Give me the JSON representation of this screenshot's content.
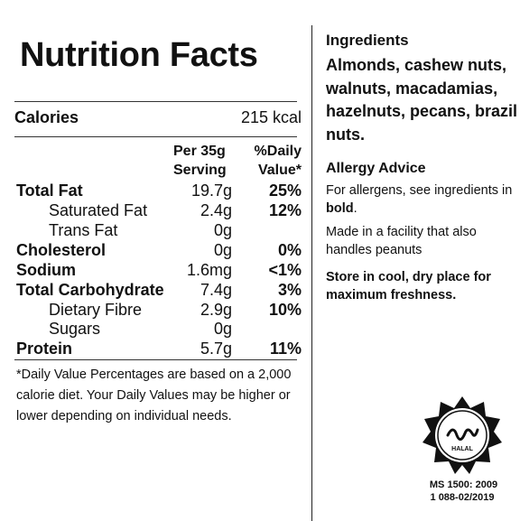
{
  "nutrition": {
    "title": "Nutrition Facts",
    "calories_label": "Calories",
    "calories_value": "215 kcal",
    "col_serving_line1": "Per 35g",
    "col_serving_line2": "Serving",
    "col_dv_line1": "%Daily",
    "col_dv_line2": "Value*",
    "rows": [
      {
        "name": "Total Fat",
        "amount": "19.7g",
        "dv": "25%"
      },
      {
        "name": "Saturated Fat",
        "amount": "2.4g",
        "dv": "12%"
      },
      {
        "name": "Trans Fat",
        "amount": "0g",
        "dv": ""
      },
      {
        "name": "Cholesterol",
        "amount": "0g",
        "dv": "0%"
      },
      {
        "name": "Sodium",
        "amount": "1.6mg",
        "dv": "<1%"
      },
      {
        "name": "Total Carbohydrate",
        "amount": "7.4g",
        "dv": "3%"
      },
      {
        "name": "Dietary Fibre",
        "amount": "2.9g",
        "dv": "10%"
      },
      {
        "name": "Sugars",
        "amount": "0g",
        "dv": ""
      },
      {
        "name": "Protein",
        "amount": "5.7g",
        "dv": "11%"
      }
    ],
    "footnote": "*Daily Value Percentages are based on a 2,000 calorie diet. Your Daily Values may be higher or lower depending on individual needs."
  },
  "ingredients": {
    "title": "Ingredients",
    "text": "Almonds, cashew nuts, walnuts, macadamias, hazelnuts, pecans, brazil nuts."
  },
  "allergy": {
    "title": "Allergy Advice",
    "text_prefix": "For allergens, see ingredients in ",
    "text_bold": "bold",
    "text_suffix": ".",
    "facility": "Made in a facility that also handles peanuts",
    "storage": "Store in cool, dry place for maximum freshness."
  },
  "certification": {
    "seal_icon": "halal-seal-icon",
    "seal_text": "HALAL",
    "standard_line1": "MS 1500: 2009",
    "standard_line2": "1 088-02/2019"
  }
}
